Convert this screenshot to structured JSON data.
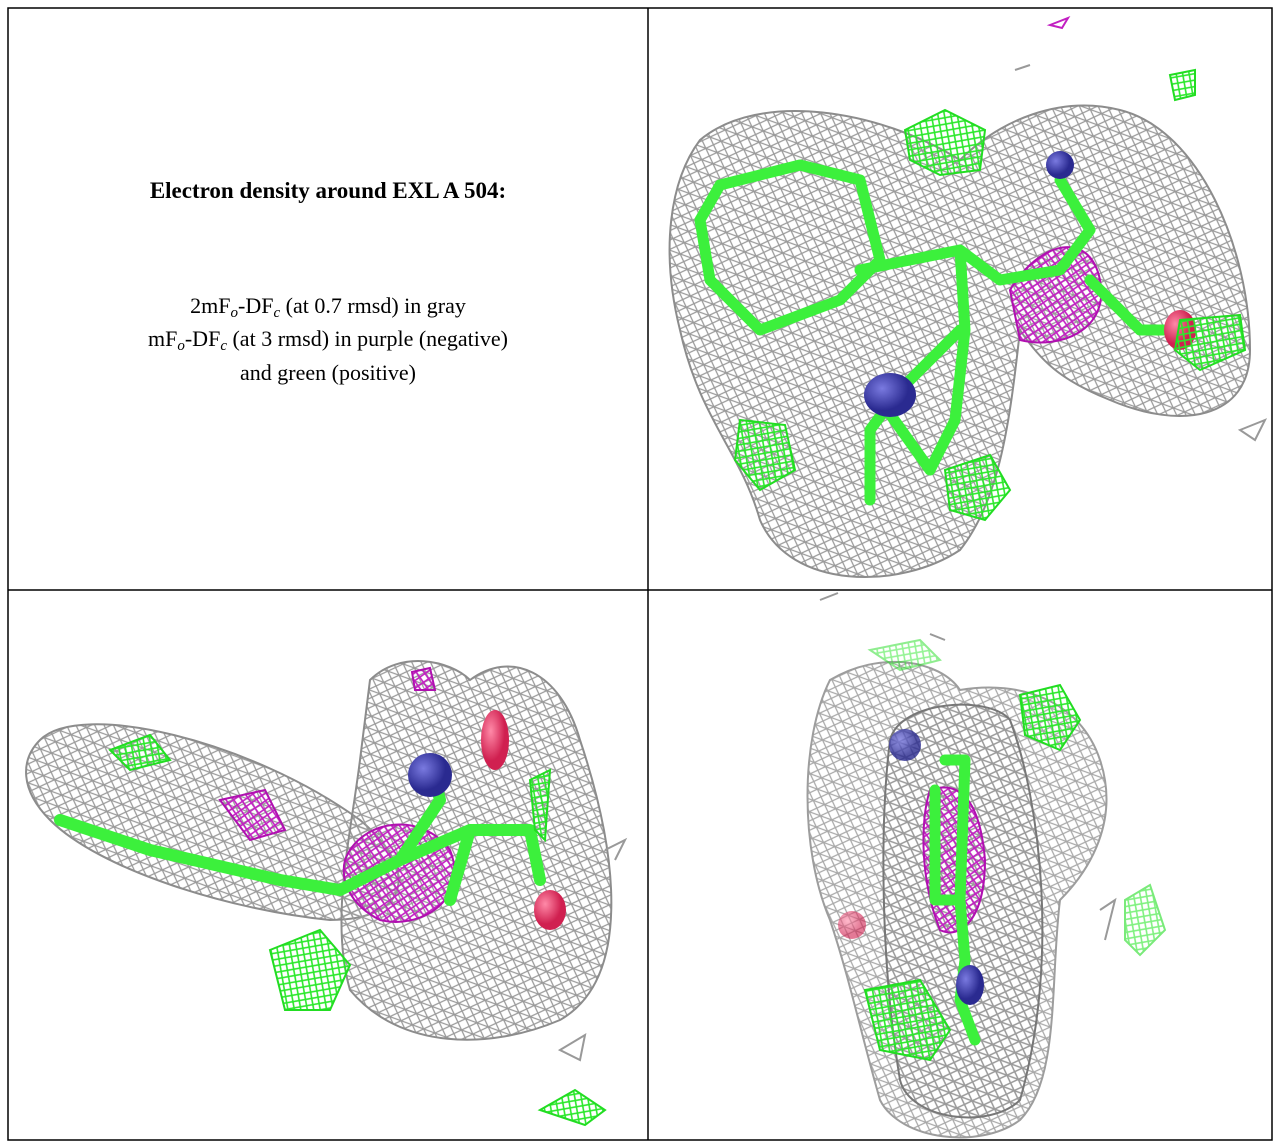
{
  "caption": {
    "title": "Electron density around EXL A 504:",
    "lines": [
      [
        "2mF",
        "o",
        "-DF",
        "c",
        " (at 0.7 rmsd) in gray"
      ],
      [
        "mF",
        "o",
        "-DF",
        "c",
        " (at 3 rmsd) in purple (negative)"
      ],
      [
        "and green (positive)"
      ]
    ]
  }
}
